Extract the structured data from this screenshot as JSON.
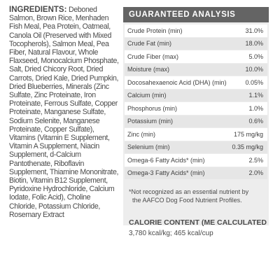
{
  "ingredients": {
    "heading": "INGREDIENTS:",
    "text": "Deboned Salmon, Brown Rice, Menhaden Fish Meal, Pea Protein, Oatmeal, Canola Oil (Preserved with Mixed Tocopherols), Salmon Meal, Pea Fiber, Natural Flavour, Whole Flaxseed, Monocalcium Phosphate, Salt, Dried Chicory Root, Dried Carrots, Dried Kale, Dried Pumpkin, Dried Blueberries, Minerals (Zinc Sulfate, Zinc Proteinate, Iron Proteinate, Ferrous Sulfate, Copper Proteinate, Manganese Sulfate, Sodium Selenite, Manganese Proteinate, Copper Sulfate), Vitamins (Vitamin E Supplement, Vitamin A Supplement, Niacin Supplement, d-Calcium Pantothenate, Riboflavin Supplement, Thiamine Mononitrate, Biotin, Vitamin B12 Supplement, Pyridoxine Hydrochloride, Calcium Iodate, Folic Acid), Choline Chloride, Potassium Chloride, Rosemary Extract"
  },
  "guaranteed_analysis": {
    "title": "GUARANTEED ANALYSIS",
    "rows": [
      {
        "label": "Crude Protein (min)",
        "value": "31.0%"
      },
      {
        "label": "Crude Fat (min)",
        "value": "18.0%"
      },
      {
        "label": "Crude Fiber (max)",
        "value": "5.0%"
      },
      {
        "label": "Moisture (max)",
        "value": "10.0%"
      },
      {
        "label": "Docosahexaenoic Acid (DHA) (min)",
        "value": "0.05%"
      },
      {
        "label": "Calcium (min)",
        "value": "1.1%"
      },
      {
        "label": "Phosphorus (min)",
        "value": "1.0%"
      },
      {
        "label": "Potassium (min)",
        "value": "0.6%"
      },
      {
        "label": "Zinc (min)",
        "value": "175 mg/kg"
      },
      {
        "label": "Selenium (min)",
        "value": "0.35 mg/kg"
      },
      {
        "label": "Omega-6 Fatty Acids* (min)",
        "value": "2.5%"
      },
      {
        "label": "Omega-3 Fatty Acids* (min)",
        "value": "2.0%"
      }
    ],
    "footnote_line1": "*Not recognized as an essential nutrient by",
    "footnote_line2": "the AAFCO Dog Food Nutrient Profiles.",
    "calorie_title": "CALORIE CONTENT (ME CALCULATED",
    "calorie_value": "3,780 kcal/kg; 465 kcal/cup"
  }
}
